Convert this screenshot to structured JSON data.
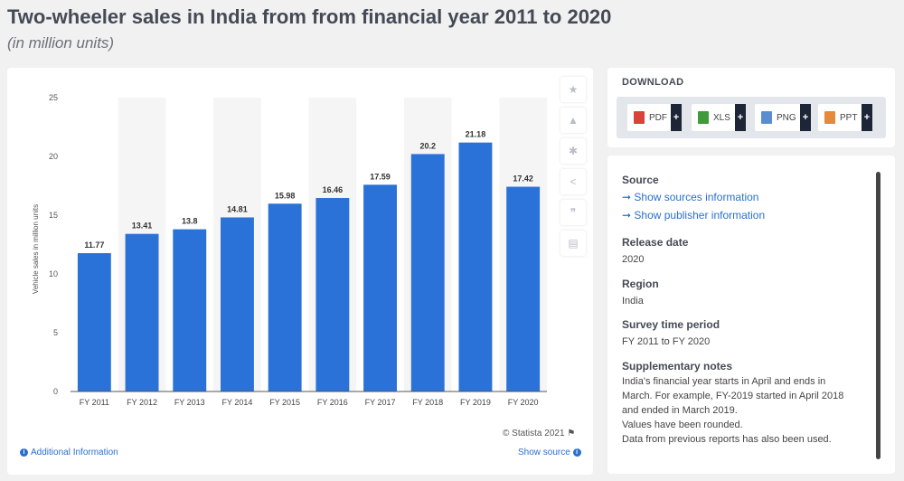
{
  "header": {
    "title": "Two-wheeler sales in India from from financial year 2011 to 2020",
    "subtitle": "(in million units)"
  },
  "chart_data": {
    "type": "bar",
    "title": "Two-wheeler sales in India from from financial year 2011 to 2020",
    "subtitle": "(in million units)",
    "categories": [
      "FY 2011",
      "FY 2012",
      "FY 2013",
      "FY 2014",
      "FY 2015",
      "FY 2016",
      "FY 2017",
      "FY 2018",
      "FY 2019",
      "FY 2020"
    ],
    "values": [
      11.77,
      13.41,
      13.8,
      14.81,
      15.98,
      16.46,
      17.59,
      20.2,
      21.18,
      17.42
    ],
    "value_labels": [
      "11.77",
      "13.41",
      "13.8",
      "14.81",
      "15.98",
      "16.46",
      "17.59",
      "20.2",
      "21.18",
      "17.42"
    ],
    "xlabel": "",
    "ylabel": "Vehicle sales in million units",
    "ylim": [
      0,
      25
    ],
    "yticks": [
      0,
      5,
      10,
      15,
      20,
      25
    ],
    "grid": false,
    "bar_color": "#2a72d8",
    "band_color": "#f5f5f5"
  },
  "tools": [
    {
      "name": "star-icon",
      "glyph": "★"
    },
    {
      "name": "bell-icon",
      "glyph": "▲"
    },
    {
      "name": "gear-icon",
      "glyph": "✱"
    },
    {
      "name": "share-icon",
      "glyph": "<"
    },
    {
      "name": "quote-icon",
      "glyph": "❞"
    },
    {
      "name": "print-icon",
      "glyph": "▤"
    }
  ],
  "footer": {
    "copyright": "© Statista 2021",
    "flag": "⚑",
    "additional_info": "Additional Information",
    "show_source": "Show source",
    "info_glyph": "i"
  },
  "download": {
    "title": "DOWNLOAD",
    "buttons": [
      {
        "label": "PDF",
        "color": "#d9443a"
      },
      {
        "label": "XLS",
        "color": "#3e9a3a"
      },
      {
        "label": "PNG",
        "color": "#5b8ed1"
      },
      {
        "label": "PPT",
        "color": "#e58a3a"
      }
    ],
    "plus": "+"
  },
  "info": {
    "source_heading": "Source",
    "source_link_1": "➞ Show sources information",
    "source_link_2": "➞ Show publisher information",
    "release_heading": "Release date",
    "release_value": "2020",
    "region_heading": "Region",
    "region_value": "India",
    "survey_heading": "Survey time period",
    "survey_value": "FY 2011 to FY 2020",
    "notes_heading": "Supplementary notes",
    "notes_lines": [
      "India's financial year starts in April and ends in",
      "March. For example, FY-2019 started in April 2018",
      "and ended in March 2019.",
      "Values have been rounded.",
      "Data from previous reports has also been used."
    ]
  }
}
